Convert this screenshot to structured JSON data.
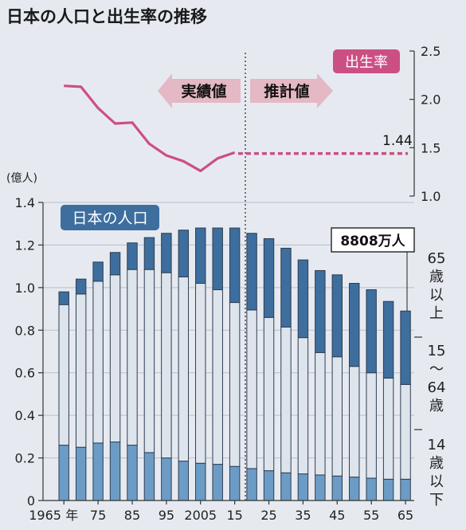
{
  "title": "日本の人口と出生率の推移",
  "labels": {
    "actual": "実績値",
    "projection": "推計値",
    "birthrate_tag": "出生率",
    "population_tag": "日本の人口",
    "left_unit": "(億人)",
    "final_value": "8808万人",
    "final_birthrate": "1.44",
    "x_suffix": "年"
  },
  "colors": {
    "bg": "#e6eaf0",
    "elderly": "#3d6e9e",
    "working": "#dde4ec",
    "children": "#6c9cc6",
    "birthrate": "#cc4f84",
    "arrow": "#e4b8c4",
    "pop_tag": "#3e6e9e"
  },
  "chart_data": [
    {
      "type": "bar",
      "stacked": true,
      "ylabel": "(億人)",
      "ylim": [
        0,
        1.4
      ],
      "y_ticks": [
        "0",
        "0.2",
        "0.4",
        "0.6",
        "0.8",
        "1.0",
        "1.2",
        "1.4"
      ],
      "categories": [
        "1965",
        "1970",
        "1975",
        "1980",
        "1985",
        "1990",
        "1995",
        "2000",
        "2005",
        "2010",
        "2015",
        "2020",
        "2025",
        "2030",
        "2035",
        "2040",
        "2045",
        "2050",
        "2055",
        "2060",
        "2065"
      ],
      "x_tick_labels": [
        "1965",
        "75",
        "85",
        "95",
        "2005",
        "15",
        "25",
        "35",
        "45",
        "55",
        "65"
      ],
      "series": [
        {
          "name": "14歳以下",
          "values": [
            0.26,
            0.25,
            0.27,
            0.275,
            0.26,
            0.225,
            0.2,
            0.185,
            0.175,
            0.17,
            0.16,
            0.15,
            0.14,
            0.13,
            0.125,
            0.12,
            0.115,
            0.11,
            0.105,
            0.1,
            0.1
          ]
        },
        {
          "name": "15～64歳",
          "values": [
            0.66,
            0.72,
            0.76,
            0.785,
            0.825,
            0.86,
            0.87,
            0.865,
            0.845,
            0.82,
            0.77,
            0.745,
            0.72,
            0.685,
            0.64,
            0.575,
            0.56,
            0.52,
            0.495,
            0.475,
            0.445
          ]
        },
        {
          "name": "65歳以上",
          "values": [
            0.06,
            0.07,
            0.09,
            0.105,
            0.125,
            0.15,
            0.185,
            0.22,
            0.26,
            0.29,
            0.35,
            0.36,
            0.37,
            0.37,
            0.365,
            0.385,
            0.385,
            0.39,
            0.39,
            0.36,
            0.345
          ]
        }
      ],
      "legend": [
        "65歳以上",
        "15～64歳",
        "14歳以下"
      ]
    },
    {
      "type": "line",
      "ylim": [
        1.0,
        2.5
      ],
      "y_ticks": [
        "1.0",
        "1.5",
        "2.0",
        "2.5"
      ],
      "series": [
        {
          "name": "出生率",
          "kind": "actual",
          "x": [
            1965,
            1970,
            1975,
            1980,
            1985,
            1990,
            1995,
            2000,
            2005,
            2010,
            2015
          ],
          "y": [
            2.14,
            2.13,
            1.91,
            1.75,
            1.76,
            1.54,
            1.42,
            1.36,
            1.26,
            1.39,
            1.45
          ]
        },
        {
          "name": "出生率",
          "kind": "projection",
          "x": [
            2016,
            2065
          ],
          "y": [
            1.44,
            1.44
          ]
        }
      ]
    }
  ]
}
